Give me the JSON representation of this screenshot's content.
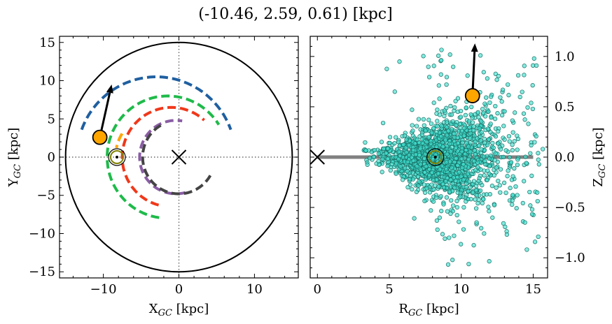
{
  "figure_title": "(-10.46, 2.59, 0.61) [kpc]",
  "colors": {
    "star": "#FFA500",
    "sun_ring": "#808000",
    "scatter_fill": "#40E0D0",
    "scatter_edge": "#1a6f66",
    "plane_line": "#808080",
    "arms": [
      "#1f5fa0",
      "#1fba4a",
      "#f0381a",
      "#8a5da4",
      "#444444",
      "#FFA500"
    ]
  },
  "chart_data": [
    {
      "type": "scatter",
      "xlabel": "X$_{GC}$ [kpc]",
      "ylabel": "Y$_{GC}$ [kpc]",
      "xlim": [
        -15.8,
        15.8
      ],
      "ylim": [
        -15.8,
        15.8
      ],
      "xticks": [
        -10,
        0,
        10
      ],
      "yticks": [
        -15,
        -10,
        -5,
        0,
        5,
        10,
        15
      ],
      "xtick_labels": [
        "−10",
        "0",
        "10"
      ],
      "ytick_labels": [
        "−15",
        "−10",
        "−5",
        "0",
        "5",
        "10",
        "15"
      ],
      "disk_radius": 15,
      "galactic_center": [
        0,
        0
      ],
      "sun": [
        -8.2,
        0
      ],
      "star": [
        -10.46,
        2.59
      ],
      "velocity_arrow_end": [
        -8.9,
        9.5
      ],
      "spiral_arms": [
        {
          "color_index": 0,
          "radius": 10.5,
          "center": [
            -3.0,
            0
          ],
          "theta_deg": [
            160,
            20
          ]
        },
        {
          "color_index": 1,
          "radius": 8.0,
          "center": [
            -1.5,
            0
          ],
          "theta_deg": [
            262,
            32
          ]
        },
        {
          "color_index": 2,
          "radius": 6.5,
          "center": [
            -1.0,
            0
          ],
          "theta_deg": [
            255,
            48
          ]
        },
        {
          "color_index": 3,
          "radius": 4.8,
          "center": [
            -0.4,
            0
          ],
          "theta_deg": [
            285,
            80
          ]
        },
        {
          "color_index": 4,
          "radius": 4.8,
          "center": [
            0,
            0
          ],
          "theta_deg": [
            120,
            330
          ]
        },
        {
          "color_index": 5,
          "radius": 5.8,
          "center": [
            -2.6,
            0
          ],
          "theta_deg": [
            148,
            168
          ]
        }
      ]
    },
    {
      "type": "scatter",
      "xlabel": "R$_{GC}$ [kpc]",
      "ylabel": "Z$_{GC}$ [kpc]",
      "xlim": [
        -0.5,
        16.0
      ],
      "ylim": [
        -1.2,
        1.2
      ],
      "xticks": [
        0,
        5,
        10,
        15
      ],
      "yticks": [
        -1.0,
        -0.5,
        0.0,
        0.5,
        1.0
      ],
      "xtick_labels": [
        "0",
        "5",
        "10",
        "15"
      ],
      "ytick_labels": [
        "−1.0",
        "−0.5",
        "0.0",
        "0.5",
        "1.0"
      ],
      "galactic_center": [
        0,
        0
      ],
      "sun": [
        8.2,
        0
      ],
      "star": [
        10.78,
        0.61
      ],
      "velocity_arrow_end": [
        10.95,
        1.13
      ],
      "plane_line_x": [
        0,
        15
      ],
      "sample_n": 1800,
      "sample_r_range": [
        3.2,
        16.0
      ],
      "sample_z_spread": "grows with R (flared distribution)"
    }
  ]
}
